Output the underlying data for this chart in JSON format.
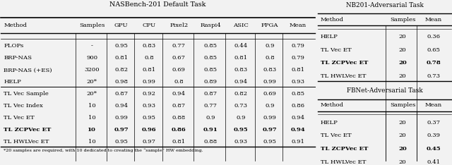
{
  "left_title": "NASBench-201 Default Task",
  "left_cols": [
    "Method",
    "Samples",
    "GPU",
    "CPU",
    "Pixel2",
    "Raspi4",
    "ASIC",
    "FPGA",
    "Mean"
  ],
  "left_group1": [
    [
      "FLOPs",
      "-",
      "0.95",
      "0.83",
      "0.77",
      "0.85",
      "0.44",
      "0.9",
      "0.79"
    ],
    [
      "BRP-NAS",
      "900",
      "0.81",
      "0.8",
      "0.67",
      "0.85",
      "0.81",
      "0.8",
      "0.79"
    ],
    [
      "BRP-NAS (+ES)",
      "3200",
      "0.82",
      "0.81",
      "0.69",
      "0.85",
      "0.83",
      "0.83",
      "0.81"
    ],
    [
      "HELP",
      "20*",
      "0.98",
      "0.99",
      "0.8",
      "0.89",
      "0.94",
      "0.99",
      "0.93"
    ]
  ],
  "left_group2": [
    [
      "TL Vec Sample",
      "20*",
      "0.87",
      "0.92",
      "0.94",
      "0.87",
      "0.82",
      "0.69",
      "0.85"
    ],
    [
      "TL Vec Index",
      "10",
      "0.94",
      "0.93",
      "0.87",
      "0.77",
      "0.73",
      "0.9",
      "0.86"
    ],
    [
      "TL Vec ET",
      "10",
      "0.99",
      "0.95",
      "0.88",
      "0.9",
      "0.9",
      "0.99",
      "0.94"
    ],
    [
      "TL ZCPVec ET",
      "10",
      "0.97",
      "0.96",
      "0.86",
      "0.91",
      "0.95",
      "0.97",
      "0.94"
    ],
    [
      "TL HWLVec ET",
      "10",
      "0.95",
      "0.97",
      "0.81",
      "0.88",
      "0.93",
      "0.95",
      "0.91"
    ]
  ],
  "left_bold_rows_g2": [
    3
  ],
  "footnote": "*20 samples are required, with 10 dedicated to creating the “sample” HW embedding.",
  "right_title1": "NB201-Adversarial Task",
  "right_cols1": [
    "Method",
    "Samples",
    "Mean"
  ],
  "right_data1": [
    [
      "HELP",
      "20",
      "0.36"
    ],
    [
      "TL Vec ET",
      "20",
      "0.65"
    ],
    [
      "TL ZCPVec ET",
      "20",
      "0.78"
    ],
    [
      "TL HWLVec ET",
      "20",
      "0.73"
    ]
  ],
  "right_bold_rows1": [
    2
  ],
  "right_title2": "FBNet-Adversarial Task",
  "right_cols2": [
    "Method",
    "Samples",
    "Mean"
  ],
  "right_data2": [
    [
      "HELP",
      "20",
      "0.37"
    ],
    [
      "TL Vec ET",
      "20",
      "0.39"
    ],
    [
      "TL ZCPVec ET",
      "20",
      "0.45"
    ],
    [
      "TL HWLVec ET",
      "20",
      "0.41"
    ]
  ],
  "right_bold_rows2": [
    2
  ],
  "bg_color": "#f2f2f2"
}
